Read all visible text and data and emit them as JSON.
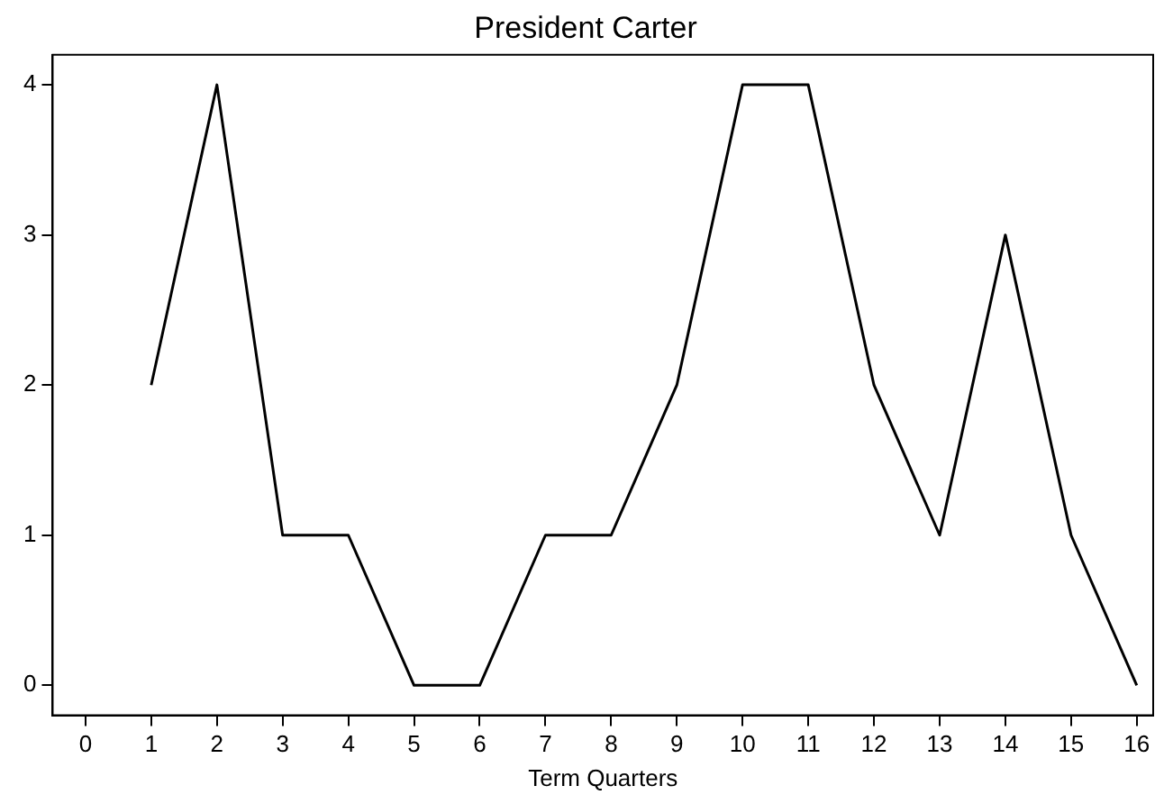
{
  "chart_data": {
    "type": "line",
    "title": "President Carter",
    "xlabel": "Term Quarters",
    "x": [
      1,
      2,
      3,
      4,
      5,
      6,
      7,
      8,
      9,
      10,
      11,
      12,
      13,
      14,
      15,
      16
    ],
    "series": [
      {
        "color": "#000000",
        "values": [
          2,
          4,
          1,
          1,
          0,
          0,
          1,
          1,
          2,
          4,
          4,
          2,
          1,
          3,
          1,
          0
        ]
      }
    ],
    "xlim": [
      -0.5,
      16.25
    ],
    "xticks": [
      0,
      1,
      2,
      3,
      4,
      5,
      6,
      7,
      8,
      9,
      10,
      11,
      12,
      13,
      14,
      15,
      16
    ],
    "ylim": [
      -0.2,
      4.2
    ],
    "yticks": [
      0,
      1,
      2,
      3,
      4
    ],
    "grid": false,
    "legend": false,
    "marker": "none",
    "line_style": "solid"
  }
}
